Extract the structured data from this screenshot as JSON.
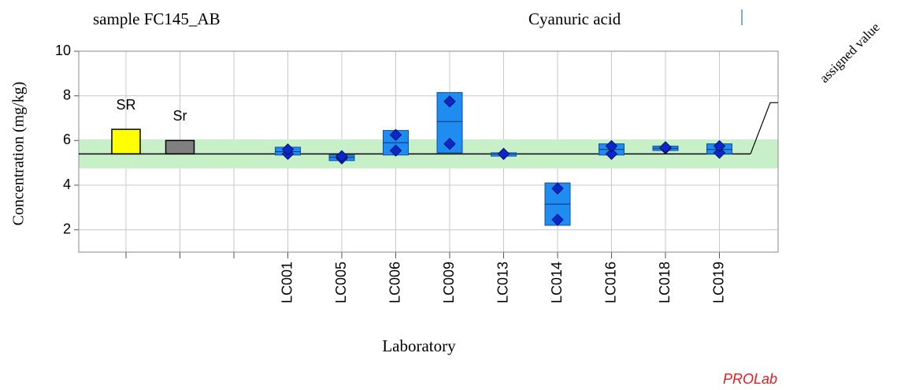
{
  "chart_data": {
    "type": "box",
    "subtitle": "sample FC145_AB",
    "title": "Cyanuric acid",
    "y_label": "Concentration (mg/kg)",
    "x_label": "Laboratory",
    "brand": "PROLab",
    "annotation": "assigned value",
    "categories": [
      null,
      null,
      null,
      "LC001",
      "LC005",
      "LC006",
      "LC009",
      "LC013",
      "LC014",
      "LC016",
      "LC018",
      "LC019"
    ],
    "box_low": [
      null,
      null,
      null,
      5.35,
      5.1,
      5.35,
      5.45,
      5.3,
      2.2,
      5.35,
      5.55,
      5.4
    ],
    "box_high": [
      null,
      null,
      null,
      5.7,
      5.35,
      6.45,
      8.15,
      5.45,
      4.1,
      5.85,
      5.75,
      5.85
    ],
    "medians": [
      null,
      null,
      null,
      5.5,
      5.25,
      5.9,
      6.85,
      5.4,
      3.15,
      5.6,
      5.65,
      5.6
    ],
    "results": [
      null,
      null,
      null,
      [
        5.4,
        5.6
      ],
      [
        5.2,
        5.3
      ],
      [
        5.55,
        6.25
      ],
      [
        5.85,
        7.75
      ],
      [
        5.4,
        5.4
      ],
      [
        2.45,
        3.85
      ],
      [
        5.4,
        5.75
      ],
      [
        5.65,
        5.7
      ],
      [
        5.45,
        5.75
      ]
    ],
    "reference_bars": [
      {
        "label": "SR",
        "value": 6.5,
        "color": "#ffff00"
      },
      {
        "label": "Sr",
        "value": 6.0,
        "color": "#808080"
      }
    ],
    "assigned_value": 5.4,
    "tolerance_band": [
      4.75,
      6.05
    ],
    "box_color": "#1e8cf0",
    "point_color": "#0a28c8",
    "band_color": "#c8f0c8",
    "ylim": [
      1,
      10
    ],
    "yticks": [
      2,
      4,
      6,
      8,
      10
    ],
    "grid": true
  }
}
